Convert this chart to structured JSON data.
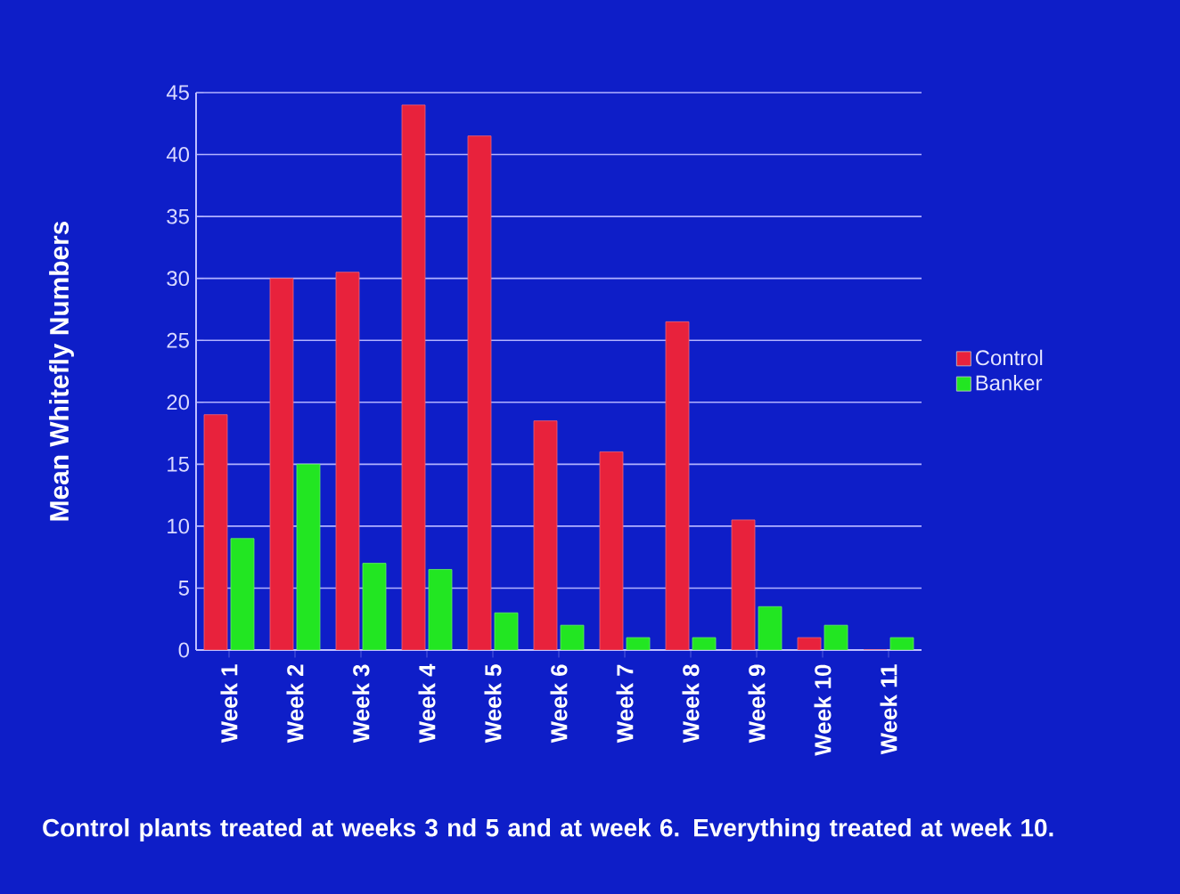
{
  "chart_data": {
    "type": "bar",
    "ylabel": "Mean Whitefly Numbers",
    "categories": [
      "Week 1",
      "Week 2",
      "Week 3",
      "Week 4",
      "Week 5",
      "Week 6",
      "Week 7",
      "Week 8",
      "Week 9",
      "Week 10",
      "Week 11"
    ],
    "series": [
      {
        "name": "Control",
        "color": "#e8223c",
        "values": [
          19,
          30,
          30.5,
          44,
          41.5,
          18.5,
          16,
          26.5,
          10.5,
          1,
          0
        ]
      },
      {
        "name": "Banker",
        "color": "#22e622",
        "values": [
          9,
          15,
          7,
          6.5,
          3,
          2,
          1,
          1,
          3.5,
          2,
          1
        ]
      }
    ],
    "ylim": [
      0,
      45
    ],
    "yticks": [
      0,
      5,
      10,
      15,
      20,
      25,
      30,
      35,
      40,
      45
    ],
    "grid": "y",
    "legend": "right",
    "annotations": [
      "Control plants treated at weeks 3 nd 5 and at week 6. Everything treated at week 10."
    ]
  }
}
